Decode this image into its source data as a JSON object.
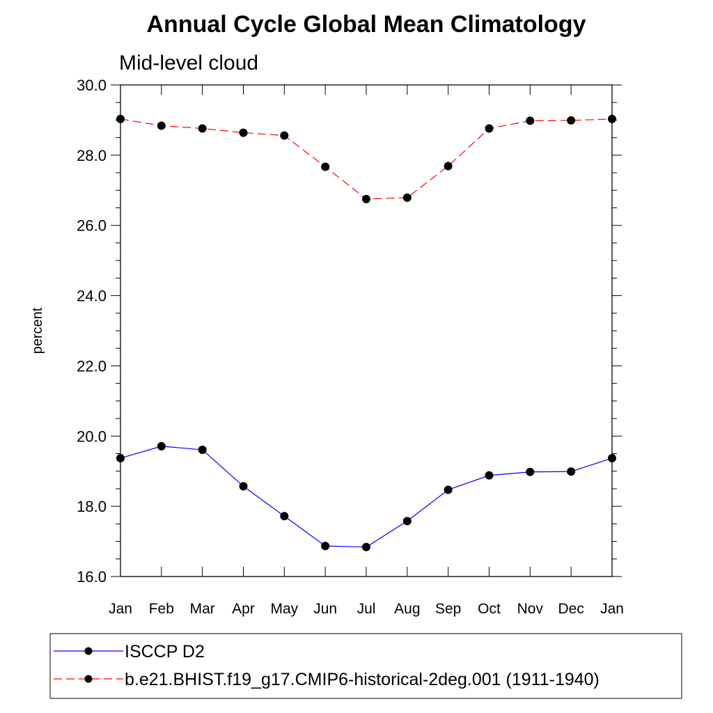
{
  "chart_data": {
    "type": "line",
    "title": "Annual Cycle Global Mean Climatology",
    "subtitle": "Mid-level cloud",
    "xlabel": "",
    "ylabel": "percent",
    "ylim": [
      16.0,
      30.0
    ],
    "yticks": [
      "16.0",
      "18.0",
      "20.0",
      "22.0",
      "24.0",
      "26.0",
      "28.0",
      "30.0"
    ],
    "categories": [
      "Jan",
      "Feb",
      "Mar",
      "Apr",
      "May",
      "Jun",
      "Jul",
      "Aug",
      "Sep",
      "Oct",
      "Nov",
      "Dec",
      "Jan"
    ],
    "grid": false,
    "legend_position": "bottom",
    "series": [
      {
        "name": "ISCCP D2",
        "color": "#0000ff",
        "line_style": "solid",
        "marker": "filled-circle",
        "values": [
          19.37,
          19.71,
          19.61,
          18.57,
          17.72,
          16.87,
          16.84,
          17.58,
          18.47,
          18.88,
          18.98,
          18.99,
          19.37
        ]
      },
      {
        "name": "b.e21.BHIST.f19_g17.CMIP6-historical-2deg.001 (1911-1940)",
        "color": "#ff0000",
        "line_style": "dashed",
        "marker": "filled-circle",
        "values": [
          29.03,
          28.84,
          28.76,
          28.64,
          28.56,
          27.67,
          26.75,
          26.79,
          27.69,
          28.76,
          28.98,
          28.99,
          29.03
        ]
      }
    ]
  }
}
